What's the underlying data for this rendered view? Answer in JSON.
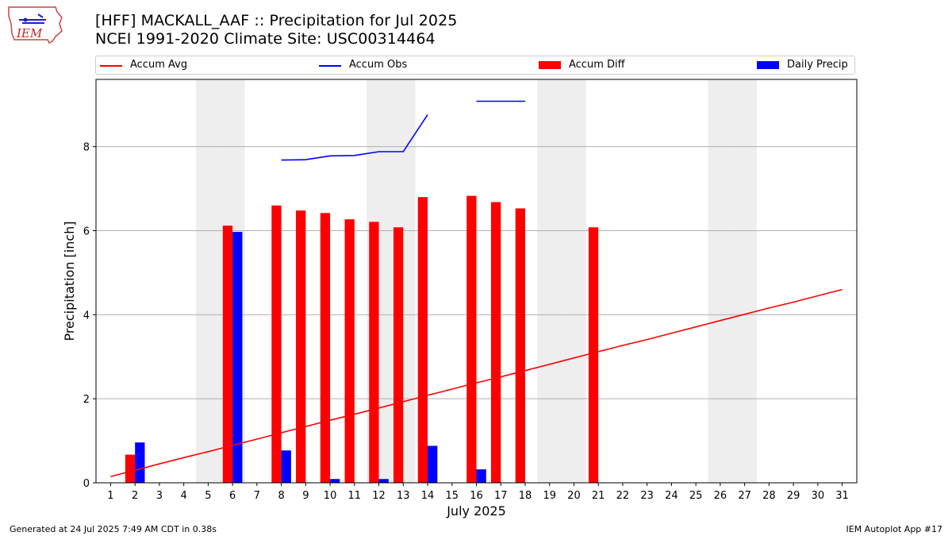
{
  "header": {
    "title_line1": "[HFF] MACKALL_AAF :: Precipitation for Jul 2025",
    "title_line2": "NCEI 1991-2020 Climate Site: USC00314464",
    "logo_text": "IEM"
  },
  "legend": {
    "items": [
      {
        "label": "Accum Avg",
        "kind": "line",
        "color": "#ff0000"
      },
      {
        "label": "Accum Obs",
        "kind": "line",
        "color": "#0000ff"
      },
      {
        "label": "Accum Diff",
        "kind": "bar",
        "color": "#ff0000"
      },
      {
        "label": "Daily Precip",
        "kind": "bar",
        "color": "#0000ff"
      }
    ]
  },
  "footer": {
    "left": "Generated at 24 Jul 2025 7:49 AM CDT in 0.38s",
    "right": "IEM Autoplot App #17"
  },
  "colors": {
    "avg": "#ff0000",
    "obs": "#0000ff",
    "diff": "#ff0000",
    "daily": "#0000ff",
    "weekend": "#eeeeee",
    "grid": "#b0b0b0"
  },
  "chart_data": {
    "type": "bar",
    "xlabel": "July 2025",
    "ylabel": "Precipitation [inch]",
    "xlim": [
      0.4,
      31.6
    ],
    "ylim": [
      0,
      9.6
    ],
    "yticks": [
      0,
      2,
      4,
      6,
      8
    ],
    "grid": "horizontal",
    "legend_position": "top",
    "days": [
      1,
      2,
      3,
      4,
      5,
      6,
      7,
      8,
      9,
      10,
      11,
      12,
      13,
      14,
      15,
      16,
      17,
      18,
      19,
      20,
      21,
      22,
      23,
      24,
      25,
      26,
      27,
      28,
      29,
      30,
      31
    ],
    "weekend_days": [
      5,
      6,
      12,
      13,
      19,
      20,
      26,
      27
    ],
    "accum_avg": [
      0.15,
      0.3,
      0.45,
      0.6,
      0.74,
      0.89,
      1.04,
      1.19,
      1.34,
      1.49,
      1.63,
      1.78,
      1.93,
      2.08,
      2.23,
      2.38,
      2.52,
      2.67,
      2.82,
      2.97,
      3.12,
      3.27,
      3.41,
      3.56,
      3.71,
      3.86,
      4.01,
      4.16,
      4.3,
      4.45,
      4.6
    ],
    "accum_obs": [
      null,
      null,
      null,
      null,
      null,
      null,
      null,
      7.68,
      7.69,
      7.78,
      7.79,
      7.88,
      7.88,
      8.76,
      null,
      9.08,
      9.08,
      9.08,
      null,
      null,
      null,
      null,
      null,
      null,
      null,
      null,
      null,
      null,
      null,
      null,
      null
    ],
    "accum_diff": [
      null,
      0.67,
      null,
      null,
      null,
      6.12,
      null,
      6.6,
      6.48,
      6.42,
      6.27,
      6.21,
      6.08,
      6.8,
      null,
      6.83,
      6.68,
      6.53,
      null,
      null,
      6.08,
      null,
      null,
      null,
      null,
      null,
      null,
      null,
      null,
      null,
      null
    ],
    "daily_precip": [
      null,
      0.96,
      null,
      null,
      null,
      5.97,
      null,
      0.77,
      0.01,
      0.09,
      0.01,
      0.09,
      0.01,
      0.88,
      null,
      0.32,
      0.01,
      0.01,
      null,
      null,
      0.01,
      null,
      null,
      null,
      null,
      null,
      null,
      null,
      null,
      null,
      null
    ]
  }
}
